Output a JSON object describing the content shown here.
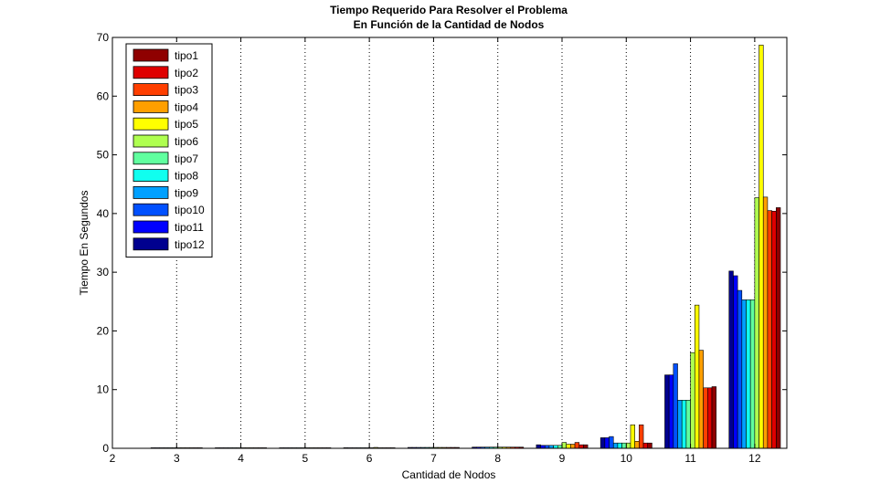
{
  "chart_data": {
    "type": "bar",
    "title": "Tiempo Requerido Para Resolver el Problema",
    "subtitle": "En Función de la Cantidad de Nodos",
    "xlabel": "Cantidad de Nodos",
    "ylabel": "Tiempo En Segundos",
    "xlim": [
      2,
      12.5
    ],
    "ylim": [
      0,
      70
    ],
    "xticks": [
      "2",
      "3",
      "4",
      "5",
      "6",
      "7",
      "8",
      "9",
      "10",
      "11",
      "12"
    ],
    "yticks": [
      "0",
      "10",
      "20",
      "30",
      "40",
      "50",
      "60",
      "70"
    ],
    "grid": "vertical-dotted",
    "legend_position": "top-left",
    "categories": [
      3,
      4,
      5,
      6,
      7,
      8,
      9,
      10,
      11,
      12
    ],
    "series": [
      {
        "name": "tipo12",
        "color": "#00008f",
        "values": [
          0.02,
          0.03,
          0.05,
          0.1,
          0.15,
          0.2,
          0.6,
          1.8,
          12.5,
          30.2
        ]
      },
      {
        "name": "tipo11",
        "color": "#0000ff",
        "values": [
          0.02,
          0.03,
          0.05,
          0.08,
          0.15,
          0.2,
          0.5,
          1.8,
          12.5,
          29.4
        ]
      },
      {
        "name": "tipo10",
        "color": "#0050ff",
        "values": [
          0.02,
          0.03,
          0.05,
          0.08,
          0.15,
          0.2,
          0.5,
          2.0,
          14.4,
          26.9
        ]
      },
      {
        "name": "tipo9",
        "color": "#00a0ff",
        "values": [
          0.02,
          0.03,
          0.05,
          0.08,
          0.15,
          0.2,
          0.5,
          0.9,
          8.2,
          25.3
        ]
      },
      {
        "name": "tipo8",
        "color": "#10ffef",
        "values": [
          0.02,
          0.03,
          0.05,
          0.08,
          0.15,
          0.2,
          0.5,
          0.9,
          8.2,
          25.3
        ]
      },
      {
        "name": "tipo7",
        "color": "#60ff9f",
        "values": [
          0.02,
          0.03,
          0.05,
          0.08,
          0.15,
          0.2,
          0.5,
          0.9,
          8.2,
          25.3
        ]
      },
      {
        "name": "tipo6",
        "color": "#afff50",
        "values": [
          0.02,
          0.03,
          0.05,
          0.08,
          0.15,
          0.2,
          1.0,
          0.9,
          16.3,
          42.7
        ]
      },
      {
        "name": "tipo5",
        "color": "#ffff00",
        "values": [
          0.02,
          0.03,
          0.05,
          0.15,
          0.15,
          0.2,
          0.7,
          4.0,
          24.4,
          68.7
        ]
      },
      {
        "name": "tipo4",
        "color": "#ff9f00",
        "values": [
          0.02,
          0.03,
          0.05,
          0.08,
          0.15,
          0.2,
          0.7,
          1.2,
          16.7,
          42.8
        ]
      },
      {
        "name": "tipo3",
        "color": "#ff3f00",
        "values": [
          0.02,
          0.03,
          0.05,
          0.08,
          0.15,
          0.2,
          1.0,
          4.0,
          10.3,
          40.5
        ]
      },
      {
        "name": "tipo2",
        "color": "#df0000",
        "values": [
          0.02,
          0.03,
          0.05,
          0.08,
          0.15,
          0.2,
          0.6,
          0.9,
          10.3,
          40.4
        ]
      },
      {
        "name": "tipo1",
        "color": "#8f0000",
        "values": [
          0.02,
          0.03,
          0.05,
          0.08,
          0.15,
          0.2,
          0.6,
          0.9,
          10.5,
          41.0
        ]
      }
    ],
    "legend_order": [
      "tipo1",
      "tipo2",
      "tipo3",
      "tipo4",
      "tipo5",
      "tipo6",
      "tipo7",
      "tipo8",
      "tipo9",
      "tipo10",
      "tipo11",
      "tipo12"
    ]
  }
}
